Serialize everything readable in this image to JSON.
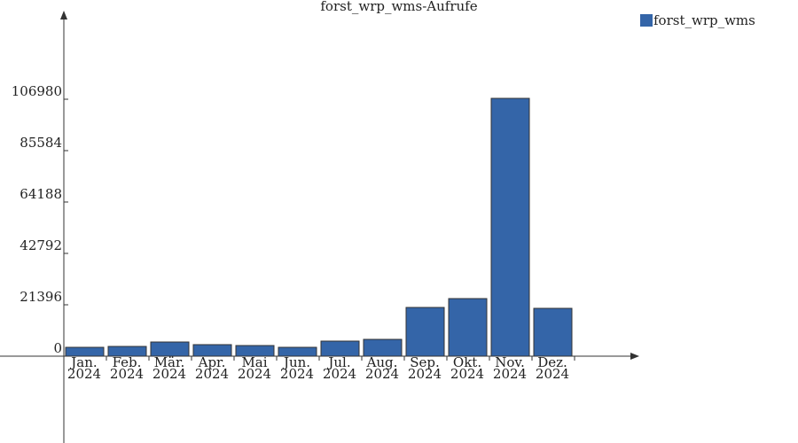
{
  "chart_data": {
    "type": "bar",
    "title": "forst_wrp_wms-Aufrufe",
    "categories": [
      "Jan. 2024",
      "Feb. 2024",
      "Mär. 2024",
      "Apr. 2024",
      "Mai 2024",
      "Jun. 2024",
      "Jul. 2024",
      "Aug. 2024",
      "Sep. 2024",
      "Okt. 2024",
      "Nov. 2024",
      "Dez. 2024"
    ],
    "series": [
      {
        "name": "forst_wrp_wms",
        "color": "#3465a8",
        "values": [
          3690,
          4060,
          5900,
          4800,
          4430,
          3690,
          6270,
          7000,
          20290,
          23980,
          107350,
          19920
        ]
      }
    ],
    "ylim": [
      -36152,
      141656
    ],
    "yticks": [
      0,
      21396,
      42792,
      64188,
      85584,
      106980
    ],
    "legend": "top-right"
  }
}
